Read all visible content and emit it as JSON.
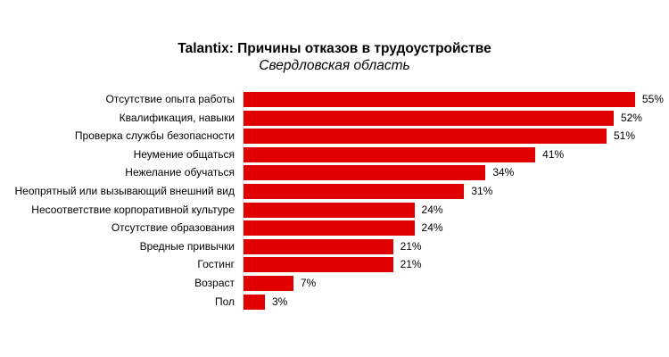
{
  "chart_data": {
    "type": "bar",
    "orientation": "horizontal",
    "title": "Talantix: Причины отказов в трудоустройстве",
    "subtitle": "Свердловская область",
    "xlabel": "",
    "ylabel": "",
    "unit": "%",
    "xlim": [
      0,
      55
    ],
    "grid": false,
    "legend": null,
    "bar_color": "#e00000",
    "categories": [
      "Отсутствие опыта работы",
      "Квалификация, навыки",
      "Проверка службы безопасности",
      "Неумение общаться",
      "Нежелание обучаться",
      "Неопрятный или вызывающий внешний вид",
      "Несоответствие корпоративной культуре",
      "Отсутствие образования",
      "Вредные привычки",
      "Гостинг",
      "Возраст",
      "Пол"
    ],
    "values": [
      55,
      52,
      51,
      41,
      34,
      31,
      24,
      24,
      21,
      21,
      7,
      3
    ],
    "value_labels": [
      "55%",
      "52%",
      "51%",
      "41%",
      "34%",
      "31%",
      "24%",
      "24%",
      "21%",
      "21%",
      "7%",
      "3%"
    ]
  }
}
